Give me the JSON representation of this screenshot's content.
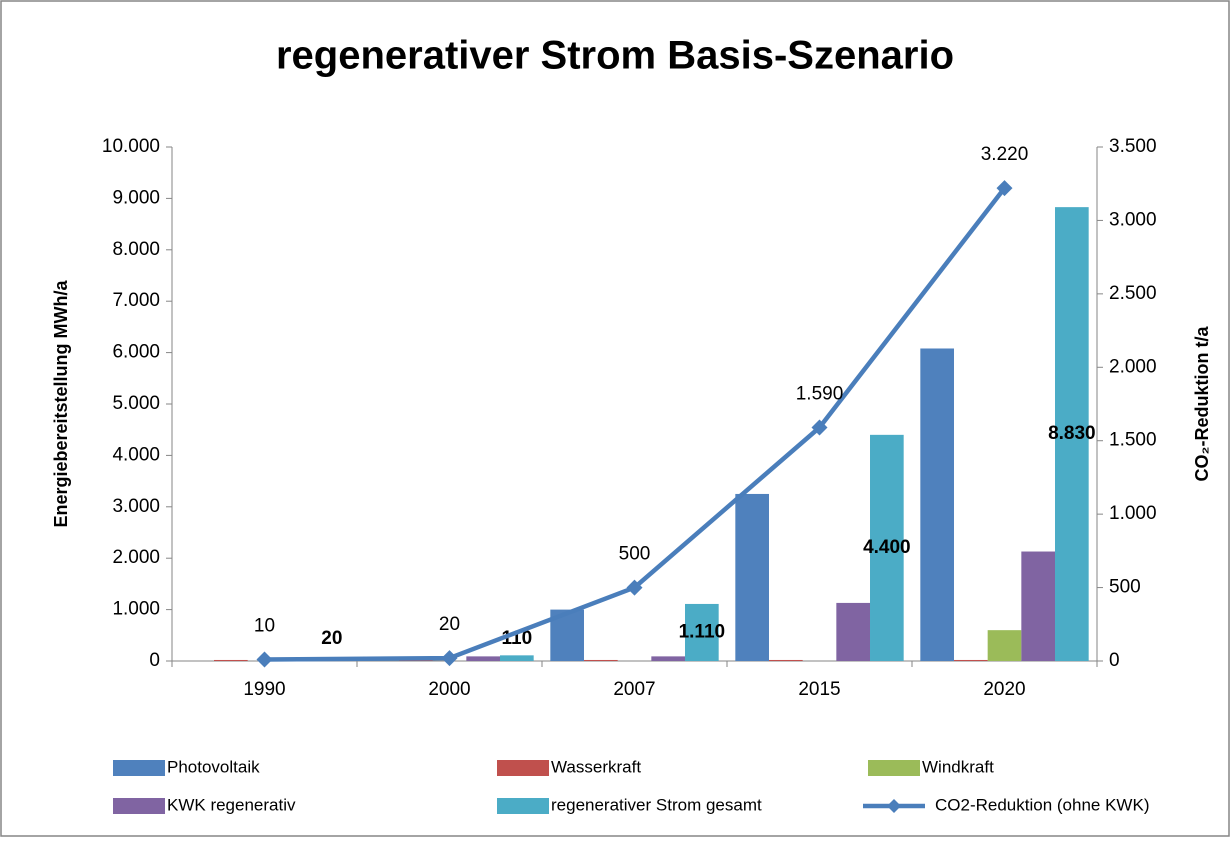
{
  "chart_data": {
    "type": "bar",
    "title": "regenerativer Strom Basis-Szenario",
    "ylabel": "Energiebereitstellung MWh/a",
    "y2label": "CO₂-Reduktion t/a",
    "categories": [
      "1990",
      "2000",
      "2007",
      "2015",
      "2020"
    ],
    "series": [
      {
        "name": "Photovoltaik",
        "color": "#4f81bd",
        "values": [
          0,
          0,
          1000,
          3250,
          6080
        ]
      },
      {
        "name": "Wasserkraft",
        "color": "#c0504d",
        "values": [
          20,
          20,
          20,
          20,
          20
        ]
      },
      {
        "name": "Windkraft",
        "color": "#9bbb59",
        "values": [
          0,
          0,
          0,
          0,
          600
        ]
      },
      {
        "name": "KWK regenerativ",
        "color": "#8064a2",
        "values": [
          0,
          90,
          90,
          1130,
          2130
        ]
      },
      {
        "name": "regenerativer Strom gesamt",
        "color": "#4bacc6",
        "values": [
          20,
          110,
          1110,
          4400,
          8830
        ],
        "value_labels": [
          "20",
          "110",
          "1.110",
          "4.400",
          "8.830"
        ]
      },
      {
        "name": "CO2-Reduktion (ohne KWK)",
        "type": "line",
        "axis": "y2",
        "color": "#4a7ebb",
        "values": [
          10,
          20,
          500,
          1590,
          3220
        ],
        "value_labels": [
          "10",
          "20",
          "500",
          "1.590",
          "3.220"
        ]
      }
    ],
    "ylim": [
      0,
      10000
    ],
    "yticks": [
      0,
      {
        "value": 1000,
        "label": "1.000"
      },
      {
        "value": 2000,
        "label": "2.000"
      },
      {
        "value": 3000,
        "label": "3.000"
      },
      {
        "value": 4000,
        "label": "4.000"
      },
      {
        "value": 5000,
        "label": "5.000"
      },
      {
        "value": 6000,
        "label": "6.000"
      },
      {
        "value": 7000,
        "label": "7.000"
      },
      {
        "value": 8000,
        "label": "8.000"
      },
      {
        "value": 9000,
        "label": "9.000"
      },
      {
        "value": 10000,
        "label": "10.000"
      }
    ],
    "y2lim": [
      0,
      3500
    ],
    "y2ticks": [
      0,
      500,
      {
        "value": 1000,
        "label": "1.000"
      },
      {
        "value": 1500,
        "label": "1.500"
      },
      {
        "value": 2000,
        "label": "2.000"
      },
      {
        "value": 2500,
        "label": "2.500"
      },
      {
        "value": 3000,
        "label": "3.000"
      },
      {
        "value": 3500,
        "label": "3.500"
      }
    ],
    "grid": false,
    "legend": "bottom"
  }
}
